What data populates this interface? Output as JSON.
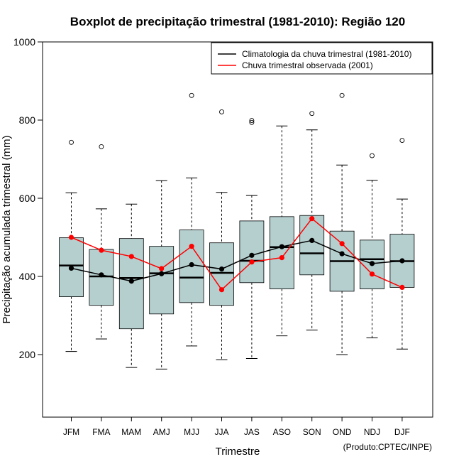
{
  "chart_data": {
    "type": "boxplot",
    "title": "Boxplot de precipitação trimestral (1981-2010): Região 120",
    "xlabel": "Trimestre",
    "ylabel": "Precipitação acumulada trimestral (mm)",
    "credit": "(Produto:CPTEC/INPE)",
    "ylim": [
      40,
      1000
    ],
    "yticks": [
      200,
      400,
      600,
      800,
      1000
    ],
    "categories": [
      "JFM",
      "FMA",
      "MAM",
      "AMJ",
      "MJJ",
      "JJA",
      "JAS",
      "ASO",
      "SON",
      "OND",
      "NDJ",
      "DJF"
    ],
    "boxes": [
      {
        "whisker_low": 208,
        "q1": 348,
        "median": 428,
        "q3": 499,
        "whisker_high": 614,
        "outliers": [
          743
        ]
      },
      {
        "whisker_low": 240,
        "q1": 326,
        "median": 400,
        "q3": 469,
        "whisker_high": 573,
        "outliers": [
          732
        ]
      },
      {
        "whisker_low": 167,
        "q1": 266,
        "median": 396,
        "q3": 497,
        "whisker_high": 585,
        "outliers": []
      },
      {
        "whisker_low": 163,
        "q1": 304,
        "median": 408,
        "q3": 477,
        "whisker_high": 645,
        "outliers": []
      },
      {
        "whisker_low": 222,
        "q1": 333,
        "median": 397,
        "q3": 519,
        "whisker_high": 652,
        "outliers": [
          863
        ]
      },
      {
        "whisker_low": 187,
        "q1": 326,
        "median": 409,
        "q3": 486,
        "whisker_high": 615,
        "outliers": [
          821
        ]
      },
      {
        "whisker_low": 190,
        "q1": 384,
        "median": 440,
        "q3": 542,
        "whisker_high": 607,
        "outliers": [
          794,
          799
        ]
      },
      {
        "whisker_low": 248,
        "q1": 368,
        "median": 475,
        "q3": 553,
        "whisker_high": 785,
        "outliers": []
      },
      {
        "whisker_low": 263,
        "q1": 404,
        "median": 459,
        "q3": 556,
        "whisker_high": 775,
        "outliers": [
          817
        ]
      },
      {
        "whisker_low": 200,
        "q1": 362,
        "median": 439,
        "q3": 516,
        "whisker_high": 685,
        "outliers": [
          863
        ]
      },
      {
        "whisker_low": 243,
        "q1": 368,
        "median": 444,
        "q3": 493,
        "whisker_high": 646,
        "outliers": [
          709
        ]
      },
      {
        "whisker_low": 214,
        "q1": 372,
        "median": 439,
        "q3": 508,
        "whisker_high": 598,
        "outliers": [
          748
        ]
      }
    ],
    "series": [
      {
        "name": "Climatologia da chuva trimestral (1981-2010)",
        "color": "#000000",
        "values": [
          421,
          404,
          388,
          407,
          430,
          419,
          454,
          476,
          492,
          458,
          433,
          440
        ]
      },
      {
        "name": "Chuva trimestral observada (2001)",
        "color": "#ff0000",
        "values": [
          500,
          467,
          451,
          420,
          477,
          366,
          437,
          448,
          548,
          484,
          406,
          372
        ]
      }
    ],
    "box_fill": "#b5cfcf",
    "legend_position": "top-right"
  }
}
